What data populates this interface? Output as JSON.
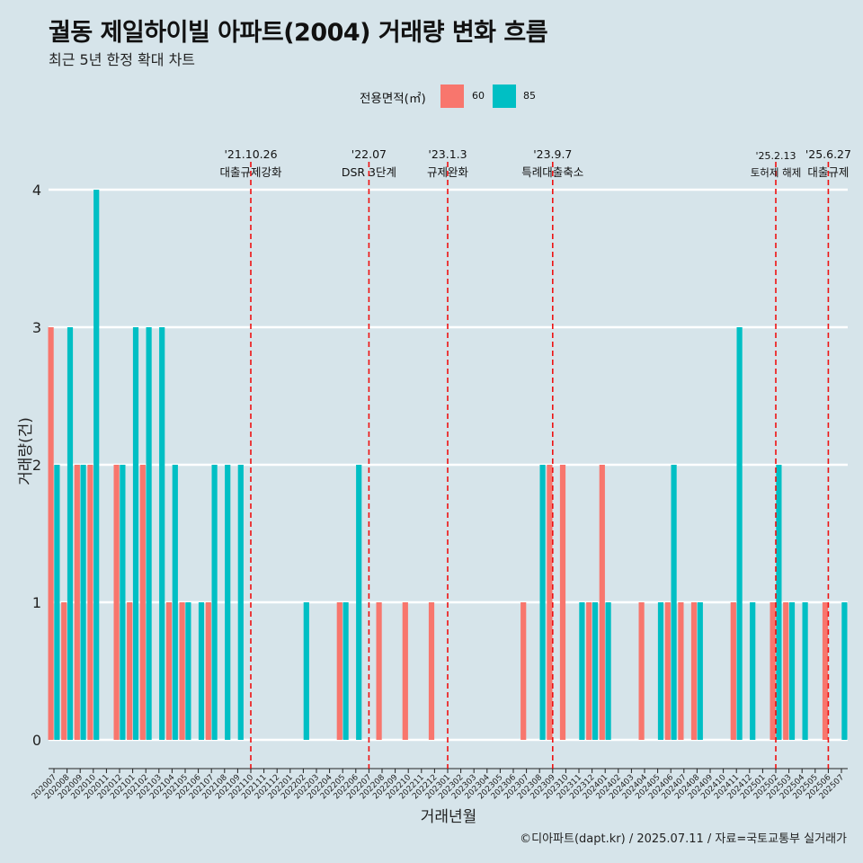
{
  "title": "궐동 제일하이빌 아파트(2004) 거래량 변화 흐름",
  "subtitle": "최근 5년 한정 확대 차트",
  "caption": "©디아파트(dapt.kr) / 2025.07.11 / 자료=국토교통부 실거래가",
  "colors": {
    "background": "#d6e4ea",
    "series_60": "#f8766d",
    "series_85": "#00bfc4",
    "event_line": "#ee1111",
    "gridline": "#ffffff"
  },
  "chart_data": {
    "type": "bar",
    "xlabel": "거래년월",
    "ylabel": "거래량(건)",
    "ylim": [
      0,
      4
    ],
    "y_ticks": [
      0,
      1,
      2,
      3,
      4
    ],
    "grid": true,
    "legend": {
      "title": "전용면적(㎡)",
      "position": "top",
      "labels": [
        "60",
        "85"
      ]
    },
    "categories": [
      "202007",
      "202008",
      "202009",
      "202010",
      "202011",
      "202012",
      "202101",
      "202102",
      "202103",
      "202104",
      "202105",
      "202106",
      "202107",
      "202108",
      "202109",
      "202110",
      "202111",
      "202112",
      "202201",
      "202202",
      "202203",
      "202204",
      "202205",
      "202206",
      "202207",
      "202208",
      "202209",
      "202210",
      "202211",
      "202212",
      "202301",
      "202302",
      "202303",
      "202304",
      "202305",
      "202306",
      "202307",
      "202308",
      "202309",
      "202310",
      "202311",
      "202312",
      "202401",
      "202402",
      "202403",
      "202404",
      "202405",
      "202406",
      "202407",
      "202408",
      "202409",
      "202410",
      "202411",
      "202412",
      "202501",
      "202502",
      "202503",
      "202504",
      "202505",
      "202506",
      "202507"
    ],
    "series": [
      {
        "name": "60",
        "values": [
          3,
          1,
          2,
          2,
          0,
          2,
          1,
          2,
          0,
          1,
          1,
          0,
          1,
          0,
          0,
          0,
          0,
          0,
          0,
          0,
          0,
          0,
          1,
          0,
          0,
          1,
          0,
          1,
          0,
          1,
          0,
          0,
          0,
          0,
          0,
          0,
          1,
          0,
          2,
          2,
          0,
          1,
          2,
          0,
          0,
          1,
          0,
          1,
          1,
          1,
          0,
          0,
          1,
          0,
          0,
          1,
          1,
          0,
          0,
          1,
          0
        ]
      },
      {
        "name": "85",
        "values": [
          2,
          3,
          2,
          4,
          0,
          2,
          3,
          3,
          3,
          2,
          1,
          1,
          2,
          2,
          2,
          0,
          0,
          0,
          0,
          1,
          0,
          0,
          1,
          2,
          0,
          0,
          0,
          0,
          0,
          0,
          0,
          0,
          0,
          0,
          0,
          0,
          0,
          2,
          0,
          0,
          1,
          1,
          1,
          0,
          0,
          0,
          1,
          2,
          0,
          1,
          0,
          0,
          3,
          1,
          0,
          2,
          1,
          1,
          0,
          0,
          1
        ]
      }
    ],
    "annotations": [
      {
        "x": "202110",
        "label_date": "'21.10.26",
        "label_text": "대출규제강화"
      },
      {
        "x": "202207",
        "label_date": "'22.07",
        "label_text": "DSR 3단계"
      },
      {
        "x": "202301",
        "label_date": "'23.1.3",
        "label_text": "규제완화"
      },
      {
        "x": "202309",
        "label_date": "'23.9.7",
        "label_text": "특례대출축소"
      },
      {
        "x": "202502",
        "label_date": "'25.2.13",
        "label_text": "토허제 해제"
      },
      {
        "x": "202506",
        "label_date": "'25.6.27",
        "label_text": "대출규제"
      }
    ]
  }
}
